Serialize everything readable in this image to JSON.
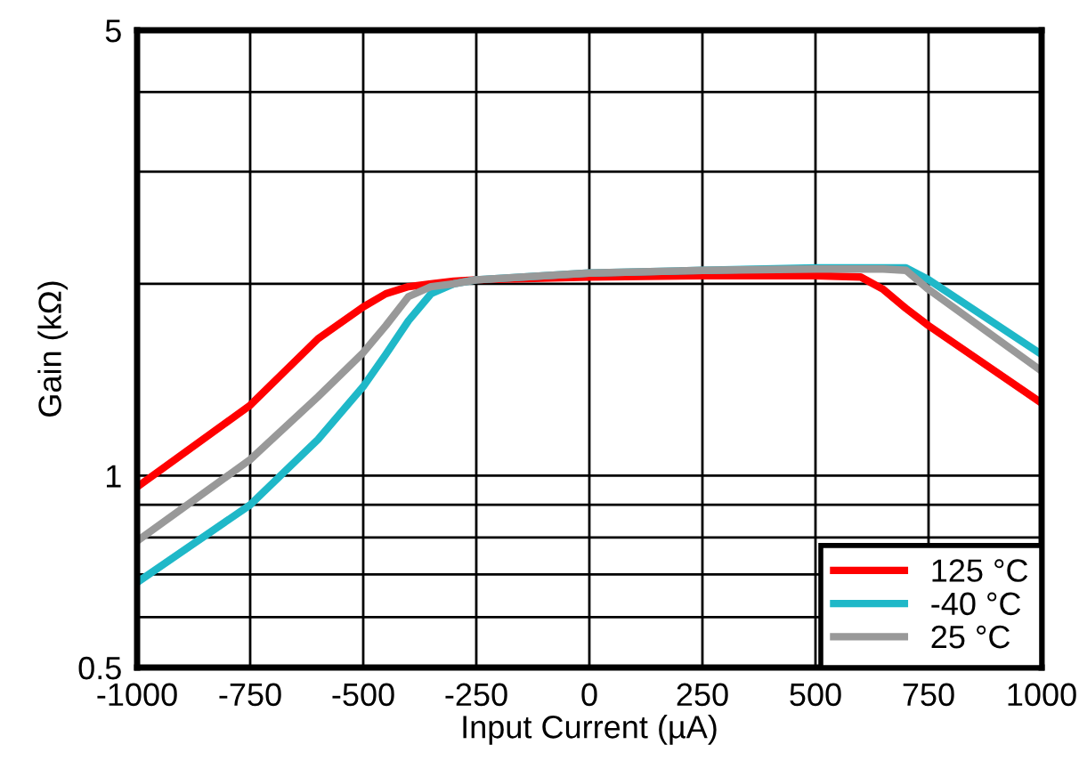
{
  "chart_data": {
    "type": "line",
    "xlabel": "Input Current (µA)",
    "ylabel": "Gain (kΩ)",
    "log": "y",
    "xlim": [
      -1000,
      1000
    ],
    "xticks": [
      -1000,
      -750,
      -500,
      -250,
      0,
      250,
      500,
      750,
      1000
    ],
    "ylim": [
      0.5,
      5
    ],
    "yticks": [
      0.5,
      {
        "value": 0.6,
        "label": null
      },
      {
        "value": 0.7,
        "label": null
      },
      {
        "value": 0.8,
        "label": null
      },
      {
        "value": 0.9,
        "label": null
      },
      1,
      {
        "value": 2,
        "label": null
      },
      {
        "value": 3,
        "label": null
      },
      {
        "value": 4,
        "label": null
      },
      5
    ],
    "grid": true,
    "legend": "bottom right",
    "x": [
      -1000,
      -750,
      -600,
      -500,
      -450,
      -400,
      -350,
      -300,
      -250,
      0,
      250,
      500,
      600,
      650,
      700,
      750,
      1000
    ],
    "series": [
      {
        "name": "125 °C",
        "color": "#ff0000",
        "values": [
          0.96,
          1.29,
          1.64,
          1.84,
          1.93,
          1.98,
          2.0,
          2.02,
          2.03,
          2.05,
          2.06,
          2.06,
          2.05,
          1.96,
          1.83,
          1.72,
          1.3
        ]
      },
      {
        "name": "-40 °C",
        "color": "#1fb8c8",
        "values": [
          0.68,
          0.9,
          1.14,
          1.38,
          1.55,
          1.75,
          1.93,
          2.0,
          2.03,
          2.08,
          2.1,
          2.12,
          2.12,
          2.12,
          2.12,
          2.03,
          1.55
        ]
      },
      {
        "name": "25 °C",
        "color": "#999999",
        "values": [
          0.79,
          1.06,
          1.33,
          1.56,
          1.72,
          1.91,
          1.98,
          2.0,
          2.03,
          2.08,
          2.1,
          2.11,
          2.11,
          2.11,
          2.1,
          1.96,
          1.46
        ]
      }
    ]
  }
}
